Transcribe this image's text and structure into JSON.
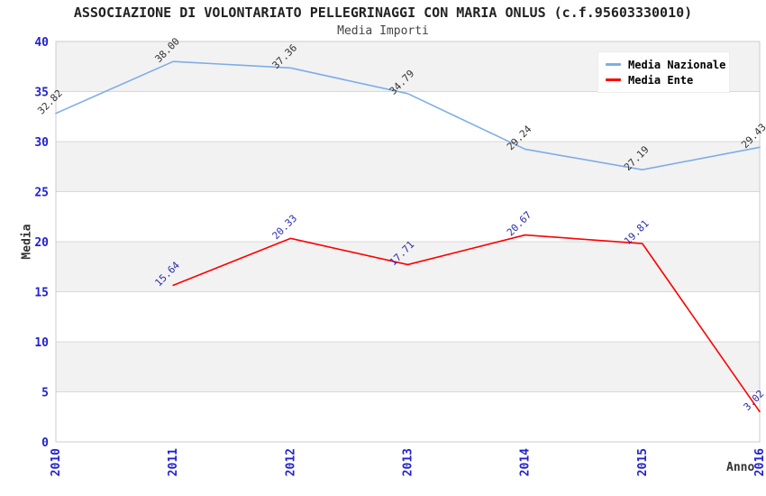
{
  "chart_data": {
    "type": "line",
    "title": "ASSOCIAZIONE DI VOLONTARIATO PELLEGRINAGGI CON MARIA ONLUS (c.f.95603330010)",
    "subtitle": "Media Importi",
    "xlabel": "Anno",
    "ylabel": "Media",
    "x_ticks": [
      "2010",
      "2011",
      "2012",
      "2013",
      "2014",
      "2015",
      "2016"
    ],
    "y_ticks": [
      0,
      5,
      10,
      15,
      20,
      25,
      30,
      35,
      40
    ],
    "xlim": [
      2010,
      2016
    ],
    "ylim": [
      0,
      40
    ],
    "grid": "horizontal gridlines with alternating gray/white bands",
    "legend_position": "top-right",
    "series": [
      {
        "name": "Media Nazionale",
        "color": "#7dade8",
        "label_color": "#333333",
        "points": [
          {
            "x": 2010,
            "y": 32.82
          },
          {
            "x": 2011,
            "y": 38.0
          },
          {
            "x": 2012,
            "y": 37.36
          },
          {
            "x": 2013,
            "y": 34.79
          },
          {
            "x": 2014,
            "y": 29.24
          },
          {
            "x": 2015,
            "y": 27.19
          },
          {
            "x": 2016,
            "y": 29.43
          }
        ]
      },
      {
        "name": "Media Ente",
        "color": "#ff0000",
        "label_color": "#2b2baa",
        "points": [
          {
            "x": 2011,
            "y": 15.64
          },
          {
            "x": 2012,
            "y": 20.33
          },
          {
            "x": 2013,
            "y": 17.71
          },
          {
            "x": 2014,
            "y": 20.67
          },
          {
            "x": 2015,
            "y": 19.81
          },
          {
            "x": 2016,
            "y": 3.02
          }
        ]
      }
    ],
    "colors": {
      "background": "#ffffff",
      "band_gray": "#f2f2f2",
      "gridline": "#d8d8d8",
      "plot_border": "#cccccc",
      "axis_tick_label": "#2222cc",
      "title_text": "#222222",
      "axis_title_text": "#333333"
    }
  }
}
